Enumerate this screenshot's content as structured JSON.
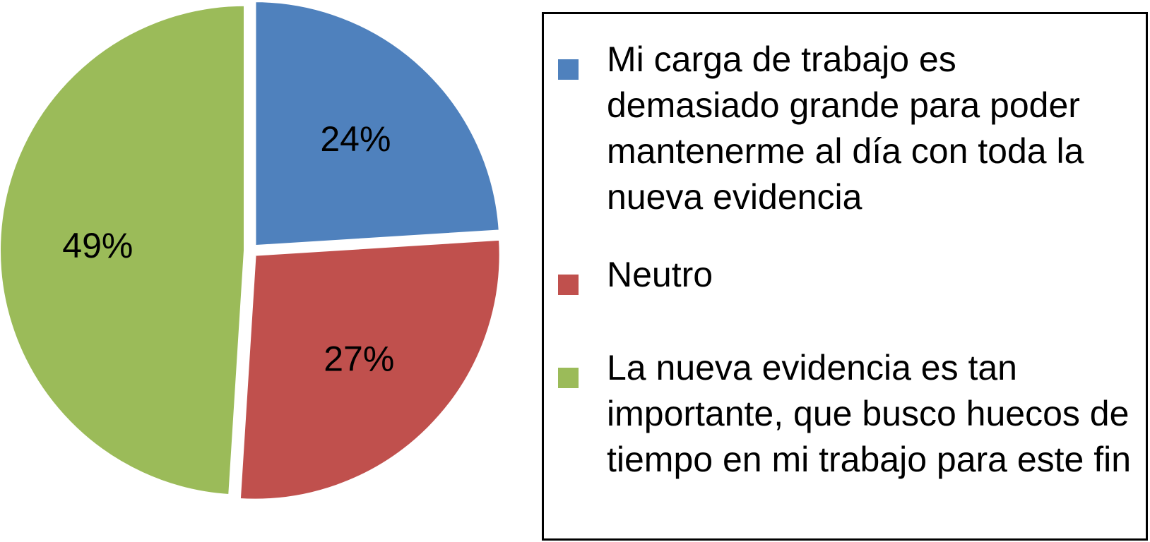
{
  "chart_data": {
    "type": "pie",
    "title": "",
    "slices": [
      {
        "name": "Mi carga de trabajo es demasiado grande para poder mantenerme al día con toda la nueva evidencia",
        "value": 24,
        "label": "24%",
        "color": "#4F81BD"
      },
      {
        "name": "Neutro",
        "value": 27,
        "label": "27%",
        "color": "#C0504D"
      },
      {
        "name": "La nueva evidencia es tan importante, que busco huecos de tiempo en mi trabajo para este fin",
        "value": 49,
        "label": "49%",
        "color": "#9BBB59"
      }
    ],
    "legend_position": "right",
    "legend_border": true
  }
}
